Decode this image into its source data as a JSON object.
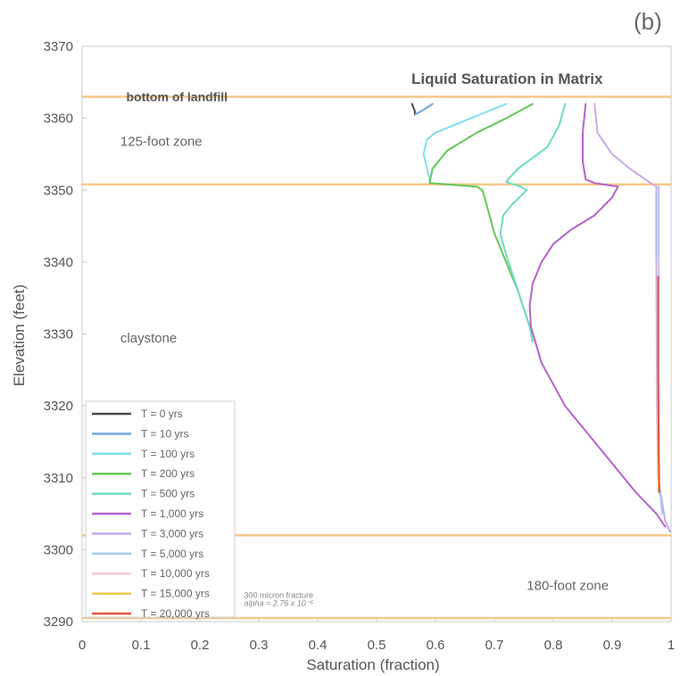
{
  "panel_label": "(b)",
  "chart_data": {
    "type": "line",
    "title": "Liquid Saturation in Matrix",
    "xlabel": "Saturation (fraction)",
    "ylabel": "Elevation (feet)",
    "xlim": [
      0,
      1
    ],
    "ylim": [
      3290,
      3370
    ],
    "x_ticks": [
      "0",
      "0.1",
      "0.2",
      "0.3",
      "0.4",
      "0.5",
      "0.6",
      "0.7",
      "0.8",
      "0.9",
      "1"
    ],
    "y_ticks": [
      "3290",
      "3300",
      "3310",
      "3320",
      "3330",
      "3340",
      "3350",
      "3360",
      "3370"
    ],
    "grid": false,
    "legend_position": "lower-left",
    "boundaries": [
      {
        "elevation": 3363,
        "color": "#f3c98a"
      },
      {
        "elevation": 3350.8,
        "color": "#f3c98a"
      },
      {
        "elevation": 3302,
        "color": "#f3c98a"
      },
      {
        "elevation": 3290.5,
        "color": "#f3c98a"
      }
    ],
    "annotations": [
      {
        "text": "bottom of landfill",
        "x": 0.075,
        "y": 3362.4,
        "style": "bold"
      },
      {
        "text": "125-foot zone",
        "x": 0.065,
        "y": 3356.2,
        "style": "normal"
      },
      {
        "text": "claystone",
        "x": 0.065,
        "y": 3328.8,
        "style": "normal"
      },
      {
        "text": "180-foot zone",
        "x": 0.755,
        "y": 3294.4,
        "style": "normal"
      },
      {
        "text": "300 micron fracture",
        "x": 0.275,
        "y": 3293.3,
        "style": "small"
      },
      {
        "text": "alpha = 2.76 x 10⁻⁵",
        "x": 0.275,
        "y": 3292.2,
        "style": "small"
      }
    ],
    "series": [
      {
        "name": "T = 0 yrs",
        "color": "#4a4a4a",
        "points": [
          [
            0.56,
            3362
          ],
          [
            0.565,
            3361
          ],
          [
            0.565,
            3360.5
          ]
        ]
      },
      {
        "name": "T = 10 yrs",
        "color": "#6fa8dc",
        "points": [
          [
            0.595,
            3362
          ],
          [
            0.58,
            3361.2
          ],
          [
            0.565,
            3360.5
          ]
        ]
      },
      {
        "name": "T = 100 yrs",
        "color": "#7fe0ee",
        "points": [
          [
            0.72,
            3362
          ],
          [
            0.66,
            3360
          ],
          [
            0.6,
            3358
          ],
          [
            0.585,
            3357
          ],
          [
            0.58,
            3355
          ],
          [
            0.59,
            3351.5
          ],
          [
            0.59,
            3351
          ]
        ]
      },
      {
        "name": "T = 200 yrs",
        "color": "#66c55a",
        "points": [
          [
            0.765,
            3362
          ],
          [
            0.72,
            3360
          ],
          [
            0.67,
            3358
          ],
          [
            0.62,
            3355.5
          ],
          [
            0.595,
            3353
          ],
          [
            0.59,
            3351
          ],
          [
            0.67,
            3350.5
          ],
          [
            0.68,
            3350
          ],
          [
            0.7,
            3344
          ],
          [
            0.74,
            3336
          ],
          [
            0.76,
            3331
          ],
          [
            0.765,
            3329
          ]
        ]
      },
      {
        "name": "T = 500 yrs",
        "color": "#6edcc4",
        "points": [
          [
            0.82,
            3362
          ],
          [
            0.81,
            3359
          ],
          [
            0.79,
            3356
          ],
          [
            0.74,
            3353
          ],
          [
            0.72,
            3351.2
          ],
          [
            0.725,
            3351
          ],
          [
            0.745,
            3350.5
          ],
          [
            0.755,
            3350
          ],
          [
            0.73,
            3348
          ],
          [
            0.715,
            3346.5
          ],
          [
            0.71,
            3344
          ],
          [
            0.72,
            3341
          ],
          [
            0.74,
            3336
          ],
          [
            0.76,
            3331
          ],
          [
            0.765,
            3329
          ]
        ]
      },
      {
        "name": "T = 1,000 yrs",
        "color": "#b463cc",
        "points": [
          [
            0.855,
            3362
          ],
          [
            0.85,
            3358
          ],
          [
            0.85,
            3354
          ],
          [
            0.855,
            3351.5
          ],
          [
            0.87,
            3351
          ],
          [
            0.91,
            3350.5
          ],
          [
            0.9,
            3349
          ],
          [
            0.87,
            3346.5
          ],
          [
            0.83,
            3344.5
          ],
          [
            0.8,
            3342.5
          ],
          [
            0.78,
            3340
          ],
          [
            0.765,
            3337
          ],
          [
            0.76,
            3334
          ],
          [
            0.762,
            3331
          ],
          [
            0.78,
            3326
          ],
          [
            0.82,
            3320
          ],
          [
            0.88,
            3314
          ],
          [
            0.94,
            3308
          ],
          [
            0.975,
            3305
          ],
          [
            0.99,
            3303.2
          ]
        ]
      },
      {
        "name": "T = 3,000 yrs",
        "color": "#c9a8e8",
        "points": [
          [
            0.87,
            3362
          ],
          [
            0.875,
            3358
          ],
          [
            0.9,
            3355
          ],
          [
            0.93,
            3353
          ],
          [
            0.96,
            3351.3
          ],
          [
            0.975,
            3350.5
          ],
          [
            0.975,
            3340
          ],
          [
            0.976,
            3320
          ],
          [
            0.978,
            3310
          ],
          [
            0.99,
            3304
          ],
          [
            0.998,
            3302.5
          ]
        ]
      },
      {
        "name": "T = 5,000 yrs",
        "color": "#a8ccee",
        "points": [
          [
            0.979,
            3350.5
          ],
          [
            0.979,
            3330
          ],
          [
            0.979,
            3310
          ],
          [
            0.985,
            3305
          ]
        ]
      },
      {
        "name": "T = 10,000 yrs",
        "color": "#f7c8dc",
        "points": [
          [
            0.977,
            3340
          ],
          [
            0.977,
            3320
          ],
          [
            0.979,
            3308
          ]
        ]
      },
      {
        "name": "T = 15,000 yrs",
        "color": "#f0c850",
        "points": [
          [
            0.978,
            3330
          ],
          [
            0.978,
            3315
          ],
          [
            0.979,
            3308
          ]
        ]
      },
      {
        "name": "T = 20,000 yrs",
        "color": "#e8523c",
        "points": [
          [
            0.978,
            3338
          ],
          [
            0.978,
            3325
          ],
          [
            0.979,
            3315
          ],
          [
            0.98,
            3308
          ]
        ]
      }
    ]
  }
}
